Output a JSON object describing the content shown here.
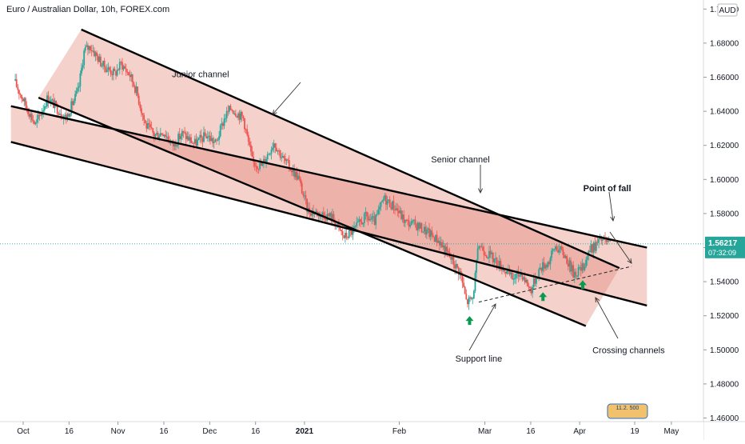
{
  "header": {
    "symbol_title": "Euro / Australian Dollar, 10h, FOREX.com"
  },
  "price_axis": {
    "currency": "AUD",
    "current_price": "1.56217",
    "countdown": "07:32:09"
  },
  "watermark": "11.2. 500",
  "colors": {
    "up": "#26a69a",
    "down": "#ef5350",
    "channel_fill": "#f2c9c1",
    "channel_overlap": "#e9a9a0",
    "price_line": "#26a69a",
    "arrow": "#0a9950"
  },
  "chart_data": {
    "type": "candlestick",
    "title": "",
    "xlabel": "",
    "ylabel": "",
    "ylim": [
      1.455,
      1.705
    ],
    "y_ticks": [
      "1.46000",
      "1.48000",
      "1.50000",
      "1.52000",
      "1.54000",
      "1.56000",
      "1.58000",
      "1.60000",
      "1.62000",
      "1.64000",
      "1.66000",
      "1.68000",
      "1.70000"
    ],
    "x_ticks": [
      "Oct",
      "16",
      "Nov",
      "16",
      "Dec",
      "16",
      "2021",
      "Feb",
      "Mar",
      "16",
      "Apr",
      "19",
      "May"
    ],
    "price_path": [
      [
        "2020-09-28",
        1.658
      ],
      [
        "2020-10-02",
        1.643
      ],
      [
        "2020-10-05",
        1.632
      ],
      [
        "2020-10-09",
        1.648
      ],
      [
        "2020-10-12",
        1.642
      ],
      [
        "2020-10-15",
        1.636
      ],
      [
        "2020-10-19",
        1.652
      ],
      [
        "2020-10-21",
        1.676
      ],
      [
        "2020-10-23",
        1.678
      ],
      [
        "2020-10-27",
        1.667
      ],
      [
        "2020-10-31",
        1.662
      ],
      [
        "2020-11-02",
        1.668
      ],
      [
        "2020-11-05",
        1.661
      ],
      [
        "2020-11-07",
        1.652
      ],
      [
        "2020-11-10",
        1.632
      ],
      [
        "2020-11-13",
        1.626
      ],
      [
        "2020-11-16",
        1.628
      ],
      [
        "2020-11-19",
        1.62
      ],
      [
        "2020-11-22",
        1.627
      ],
      [
        "2020-11-26",
        1.621
      ],
      [
        "2020-11-30",
        1.626
      ],
      [
        "2020-12-03",
        1.621
      ],
      [
        "2020-12-06",
        1.637
      ],
      [
        "2020-12-08",
        1.642
      ],
      [
        "2020-12-12",
        1.636
      ],
      [
        "2020-12-15",
        1.61
      ],
      [
        "2020-12-18",
        1.608
      ],
      [
        "2020-12-22",
        1.622
      ],
      [
        "2020-12-25",
        1.612
      ],
      [
        "2020-12-30",
        1.601
      ],
      [
        "2021-01-02",
        1.582
      ],
      [
        "2021-01-06",
        1.58
      ],
      [
        "2021-01-10",
        1.578
      ],
      [
        "2021-01-14",
        1.566
      ],
      [
        "2021-01-17",
        1.57
      ],
      [
        "2021-01-21",
        1.578
      ],
      [
        "2021-01-24",
        1.575
      ],
      [
        "2021-01-27",
        1.589
      ],
      [
        "2021-01-31",
        1.583
      ],
      [
        "2021-02-03",
        1.575
      ],
      [
        "2021-02-07",
        1.573
      ],
      [
        "2021-02-11",
        1.568
      ],
      [
        "2021-02-14",
        1.564
      ],
      [
        "2021-02-17",
        1.556
      ],
      [
        "2021-02-21",
        1.545
      ],
      [
        "2021-02-23",
        1.528
      ],
      [
        "2021-02-25",
        1.53
      ],
      [
        "2021-02-27",
        1.562
      ],
      [
        "2021-03-01",
        1.558
      ],
      [
        "2021-03-04",
        1.553
      ],
      [
        "2021-03-07",
        1.548
      ],
      [
        "2021-03-10",
        1.542
      ],
      [
        "2021-03-13",
        1.545
      ],
      [
        "2021-03-16",
        1.535
      ],
      [
        "2021-03-19",
        1.548
      ],
      [
        "2021-03-22",
        1.552
      ],
      [
        "2021-03-24",
        1.561
      ],
      [
        "2021-03-27",
        1.556
      ],
      [
        "2021-03-30",
        1.545
      ],
      [
        "2021-04-02",
        1.548
      ],
      [
        "2021-04-04",
        1.558
      ],
      [
        "2021-04-06",
        1.561
      ],
      [
        "2021-04-08",
        1.565
      ],
      [
        "2021-04-11",
        1.5622
      ]
    ],
    "channels": [
      {
        "label": "Junior channel",
        "upper": [
          [
            "2020-10-20",
            1.688
          ],
          [
            "2021-04-14",
            1.548
          ]
        ],
        "lower": [
          [
            "2020-10-06",
            1.648
          ],
          [
            "2021-04-03",
            1.514
          ]
        ]
      },
      {
        "label": "Senior channel",
        "upper": [
          [
            "2020-09-27",
            1.643
          ],
          [
            "2021-04-23",
            1.56
          ]
        ],
        "lower": [
          [
            "2020-09-27",
            1.622
          ],
          [
            "2021-04-23",
            1.526
          ]
        ]
      }
    ],
    "support_line": [
      [
        "2021-02-27",
        1.528
      ],
      [
        "2021-04-18",
        1.549
      ]
    ],
    "annotations": [
      {
        "text": "Junior channel",
        "at": [
          "2020-11-28",
          1.66
        ],
        "bold": false
      },
      {
        "text": "Senior channel",
        "at": [
          "2021-02-21",
          1.61
        ],
        "bold": false
      },
      {
        "text": "Point of fall",
        "at": [
          "2021-04-10",
          1.593
        ],
        "bold": true
      },
      {
        "text": "Support line",
        "at": [
          "2021-02-27",
          1.493
        ],
        "bold": false
      },
      {
        "text": "Crossing channels",
        "at": [
          "2021-04-17",
          1.498
        ],
        "bold": false
      }
    ],
    "arrows": [
      [
        "2021-02-24",
        1.517
      ],
      [
        "2021-03-20",
        1.531
      ],
      [
        "2021-04-02",
        1.538
      ]
    ],
    "grid": false,
    "legend": "none"
  }
}
